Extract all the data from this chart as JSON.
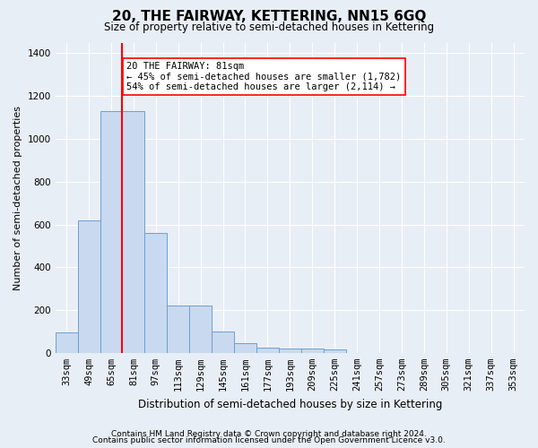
{
  "title": "20, THE FAIRWAY, KETTERING, NN15 6GQ",
  "subtitle": "Size of property relative to semi-detached houses in Kettering",
  "xlabel": "Distribution of semi-detached houses by size in Kettering",
  "ylabel": "Number of semi-detached properties",
  "categories": [
    "33sqm",
    "49sqm",
    "65sqm",
    "81sqm",
    "97sqm",
    "113sqm",
    "129sqm",
    "145sqm",
    "161sqm",
    "177sqm",
    "193sqm",
    "209sqm",
    "225sqm",
    "241sqm",
    "257sqm",
    "273sqm",
    "289sqm",
    "305sqm",
    "321sqm",
    "337sqm",
    "353sqm"
  ],
  "values": [
    95,
    620,
    1130,
    1130,
    560,
    220,
    220,
    100,
    45,
    25,
    22,
    20,
    15,
    0,
    0,
    0,
    0,
    0,
    0,
    0,
    0
  ],
  "highlight_index": 3,
  "bar_color": "#c9d9f0",
  "bar_edge_color": "#6b9fd4",
  "vline_x_index": 3,
  "vline_color": "red",
  "annotation_text": "20 THE FAIRWAY: 81sqm\n← 45% of semi-detached houses are smaller (1,782)\n54% of semi-detached houses are larger (2,114) →",
  "annotation_box_color": "white",
  "annotation_box_edge_color": "red",
  "ylim": [
    0,
    1450
  ],
  "yticks": [
    0,
    200,
    400,
    600,
    800,
    1000,
    1200,
    1400
  ],
  "footer_line1": "Contains HM Land Registry data © Crown copyright and database right 2024.",
  "footer_line2": "Contains public sector information licensed under the Open Government Licence v3.0.",
  "background_color": "#e8eef5",
  "plot_bg_color": "#e8eef5",
  "grid_color": "white",
  "title_fontsize": 11,
  "subtitle_fontsize": 8.5,
  "xlabel_fontsize": 8.5,
  "ylabel_fontsize": 8,
  "tick_fontsize": 7.5,
  "footer_fontsize": 6.5
}
